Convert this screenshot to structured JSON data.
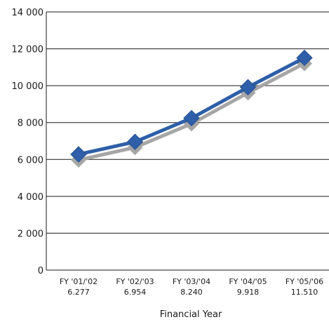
{
  "chart_data": {
    "type": "line",
    "title": "",
    "xlabel": "Financial Year",
    "ylabel": "",
    "ylim": [
      0,
      14000
    ],
    "y_ticks": [
      "0",
      "2 000",
      "4 000",
      "6 000",
      "8 000",
      "10 000",
      "12 000",
      "14 000"
    ],
    "y_tick_values": [
      0,
      2000,
      4000,
      6000,
      8000,
      10000,
      12000,
      14000
    ],
    "categories": [
      "FY '01/'02",
      "FY '02/'03",
      "FY '03/'04",
      "FY '04/'05",
      "FY '05/'06"
    ],
    "category_values": [
      "6.277",
      "6.954",
      "8.240",
      "9.918",
      "11.510"
    ],
    "series": [
      {
        "values": [
          6277,
          6954,
          8240,
          9918,
          11510
        ],
        "color": "#2e5fa8",
        "shadow_color": "#a6a6a6",
        "marker": "diamond"
      }
    ],
    "grid": true,
    "legend": "none"
  }
}
